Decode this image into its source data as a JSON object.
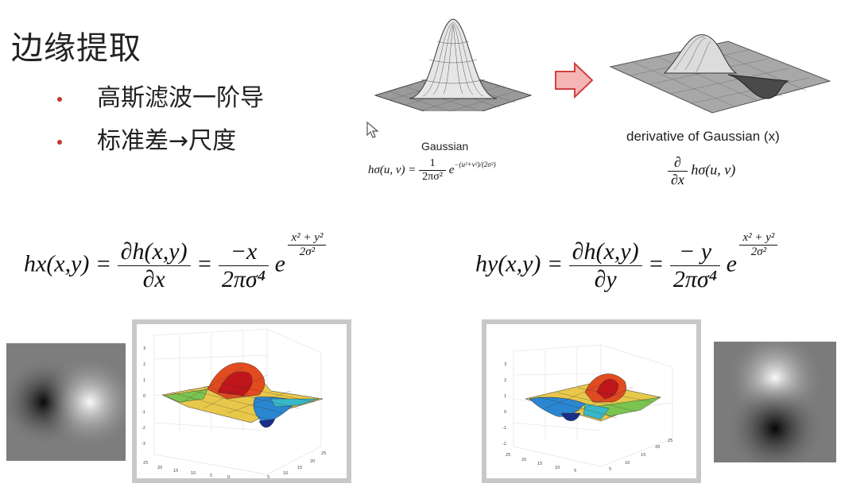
{
  "slide": {
    "title": "边缘提取",
    "bullets": [
      "高斯滤波一阶导",
      "标准差→尺度"
    ]
  },
  "top_figures": {
    "left_caption": "Gaussian",
    "left_formula_lhs": "hσ(u, v) =",
    "left_formula_num": "1",
    "left_formula_den": "2πσ²",
    "left_formula_e": "e",
    "left_formula_exp": "−(u²+v²)/(2σ²)",
    "arrow_icon": "right-arrow",
    "right_caption": "derivative of Gaussian (x)",
    "right_formula_num": "∂",
    "right_formula_den": "∂x",
    "right_formula_rhs": "hσ(u, v)"
  },
  "hx": {
    "lhs": "hx(x,y) =",
    "num1": "∂h(x,y)",
    "den1": "∂x",
    "eq": "=",
    "num2": "−x",
    "den2": "2πσ⁴",
    "e": "e",
    "exp_num": "x² + y²",
    "exp_den": "2σ²"
  },
  "hy": {
    "lhs": "hy(x,y) =",
    "num1": "∂h(x,y)",
    "den1": "∂y",
    "eq": "=",
    "num2": "− y",
    "den2": "2πσ⁴",
    "e": "e",
    "exp_num": "x² + y²",
    "exp_den": "2σ²"
  },
  "colors": {
    "bullet": "#c0392b",
    "arrow_fill": "#f5b5b5",
    "arrow_stroke": "#d04040"
  }
}
